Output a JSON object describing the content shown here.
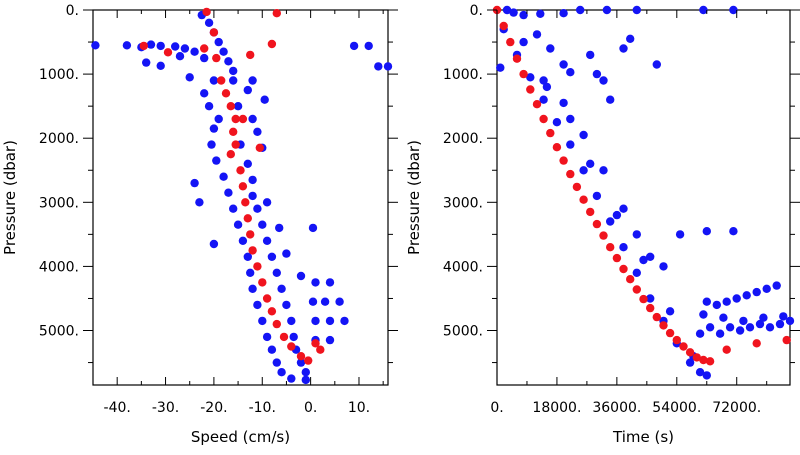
{
  "colors": {
    "blue": "#1414f5",
    "red": "#f0141e",
    "frame": "#000000"
  },
  "chart_data": [
    {
      "type": "scatter",
      "xlabel": "Speed (cm/s)",
      "ylabel": "Pressure (dbar)",
      "xlim": [
        -45,
        16
      ],
      "ylim": [
        5850,
        0
      ],
      "xticks": [
        -40,
        -30,
        -20,
        -10,
        0,
        10
      ],
      "xtick_labels": [
        "-40.",
        "-30.",
        "-20.",
        "-10.",
        "0.",
        "10."
      ],
      "yticks": [
        0,
        1000,
        2000,
        3000,
        4000,
        5000
      ],
      "ytick_labels": [
        "0.",
        "1000.",
        "2000.",
        "3000.",
        "4000.",
        "5000."
      ],
      "series": [
        {
          "color": "blue",
          "points": [
            [
              -44.5,
              550
            ],
            [
              -38,
              550
            ],
            [
              -35,
              580
            ],
            [
              -33,
              540
            ],
            [
              -31,
              560
            ],
            [
              -28,
              570
            ],
            [
              -26,
              600
            ],
            [
              -34,
              820
            ],
            [
              -31,
              870
            ],
            [
              -27,
              720
            ],
            [
              -24,
              650
            ],
            [
              -22,
              750
            ],
            [
              -22.5,
              80
            ],
            [
              -21,
              200
            ],
            [
              -20,
              350
            ],
            [
              -19,
              500
            ],
            [
              -18,
              650
            ],
            [
              -17,
              800
            ],
            [
              -16,
              950
            ],
            [
              -25,
              1050
            ],
            [
              -20,
              1100
            ],
            [
              -16,
              1100
            ],
            [
              -12,
              1100
            ],
            [
              -22,
              1300
            ],
            [
              -13,
              1250
            ],
            [
              -21,
              1500
            ],
            [
              -15,
              1500
            ],
            [
              -9.5,
              1400
            ],
            [
              -19,
              1700
            ],
            [
              -12,
              1700
            ],
            [
              -20,
              1850
            ],
            [
              -11,
              1900
            ],
            [
              -20.5,
              2100
            ],
            [
              -14.5,
              2100
            ],
            [
              -10,
              2150
            ],
            [
              -19.5,
              2350
            ],
            [
              -13,
              2400
            ],
            [
              -18,
              2600
            ],
            [
              -12,
              2650
            ],
            [
              -17,
              2850
            ],
            [
              -12,
              2900
            ],
            [
              -16,
              3100
            ],
            [
              -11,
              3100
            ],
            [
              -9,
              3000
            ],
            [
              -6.5,
              3400
            ],
            [
              -15,
              3350
            ],
            [
              -10,
              3350
            ],
            [
              -14,
              3600
            ],
            [
              -9,
              3600
            ],
            [
              -5,
              3800
            ],
            [
              -13,
              3850
            ],
            [
              -8,
              3850
            ],
            [
              -12.5,
              4100
            ],
            [
              -7,
              4100
            ],
            [
              -2,
              4150
            ],
            [
              -12,
              4350
            ],
            [
              -6,
              4350
            ],
            [
              -11,
              4600
            ],
            [
              -5,
              4600
            ],
            [
              -10,
              4850
            ],
            [
              -4,
              4850
            ],
            [
              -9,
              5100
            ],
            [
              -3.5,
              5100
            ],
            [
              -8,
              5300
            ],
            [
              -3,
              5300
            ],
            [
              -7,
              5500
            ],
            [
              -2,
              5500
            ],
            [
              -6,
              5650
            ],
            [
              -1,
              5650
            ],
            [
              -4,
              5750
            ],
            [
              -1,
              5770
            ],
            [
              1,
              4250
            ],
            [
              4,
              4250
            ],
            [
              0.5,
              4550
            ],
            [
              3,
              4550
            ],
            [
              6,
              4550
            ],
            [
              1,
              4850
            ],
            [
              4,
              4850
            ],
            [
              7,
              4850
            ],
            [
              1,
              5150
            ],
            [
              4,
              5150
            ],
            [
              0.5,
              3400
            ],
            [
              14,
              880
            ],
            [
              16,
              880
            ],
            [
              9,
              560
            ],
            [
              12,
              560
            ],
            [
              -24,
              2700
            ],
            [
              -23,
              3000
            ],
            [
              -20,
              3650
            ]
          ]
        },
        {
          "color": "red",
          "points": [
            [
              -34.5,
              560
            ],
            [
              -29.5,
              660
            ],
            [
              -22,
              600
            ],
            [
              -21.5,
              30
            ],
            [
              -20,
              350
            ],
            [
              -19.5,
              750
            ],
            [
              -18.5,
              1100
            ],
            [
              -17.5,
              1300
            ],
            [
              -16.5,
              1500
            ],
            [
              -15.5,
              1700
            ],
            [
              -16,
              1900
            ],
            [
              -15.5,
              2100
            ],
            [
              -16.5,
              2250
            ],
            [
              -14.5,
              2500
            ],
            [
              -14,
              2750
            ],
            [
              -13.5,
              3000
            ],
            [
              -13,
              3250
            ],
            [
              -12.5,
              3500
            ],
            [
              -12,
              3750
            ],
            [
              -11,
              4000
            ],
            [
              -10,
              4250
            ],
            [
              -9,
              4500
            ],
            [
              -8,
              4700
            ],
            [
              -7,
              4900
            ],
            [
              -5.5,
              5100
            ],
            [
              -4,
              5250
            ],
            [
              -2,
              5400
            ],
            [
              -0.5,
              5470
            ],
            [
              1,
              5200
            ],
            [
              2,
              5300
            ],
            [
              -10.5,
              2150
            ],
            [
              -14,
              1700
            ],
            [
              -12.5,
              700
            ],
            [
              -8,
              530
            ],
            [
              -7,
              50
            ]
          ]
        }
      ]
    },
    {
      "type": "scatter",
      "xlabel": "Time (s)",
      "ylabel": "Pressure (dbar)",
      "xlim": [
        0,
        88000
      ],
      "ylim": [
        5850,
        0
      ],
      "xticks": [
        0,
        18000,
        36000,
        54000,
        72000
      ],
      "xtick_labels": [
        "0.",
        "18000.",
        "36000.",
        "54000.",
        "72000."
      ],
      "yticks": [
        0,
        1000,
        2000,
        3000,
        4000,
        5000
      ],
      "ytick_labels": [
        "0.",
        "1000.",
        "2000.",
        "3000.",
        "4000.",
        "5000."
      ],
      "series": [
        {
          "color": "blue",
          "points": [
            [
              1000,
              900
            ],
            [
              3000,
              0
            ],
            [
              5000,
              40
            ],
            [
              8000,
              80
            ],
            [
              13000,
              60
            ],
            [
              20000,
              50
            ],
            [
              25000,
              0
            ],
            [
              33000,
              0
            ],
            [
              42000,
              0
            ],
            [
              62000,
              0
            ],
            [
              71000,
              0
            ],
            [
              2000,
              300
            ],
            [
              6000,
              700
            ],
            [
              10000,
              1050
            ],
            [
              14000,
              1400
            ],
            [
              18000,
              1750
            ],
            [
              22000,
              2100
            ],
            [
              26000,
              2500
            ],
            [
              30000,
              2900
            ],
            [
              34000,
              3300
            ],
            [
              38000,
              3700
            ],
            [
              42000,
              4100
            ],
            [
              46000,
              4500
            ],
            [
              50000,
              4850
            ],
            [
              54000,
              5200
            ],
            [
              58000,
              5500
            ],
            [
              61000,
              5650
            ],
            [
              63000,
              5700
            ],
            [
              8000,
              500
            ],
            [
              15000,
              1200
            ],
            [
              22000,
              1700
            ],
            [
              28000,
              2400
            ],
            [
              36000,
              3200
            ],
            [
              44000,
              3900
            ],
            [
              52000,
              4700
            ],
            [
              59000,
              5400
            ],
            [
              12000,
              380
            ],
            [
              16000,
              600
            ],
            [
              20000,
              850
            ],
            [
              22000,
              970
            ],
            [
              14000,
              1100
            ],
            [
              20000,
              1450
            ],
            [
              26000,
              1950
            ],
            [
              32000,
              2500
            ],
            [
              38000,
              3100
            ],
            [
              42000,
              3500
            ],
            [
              46000,
              3850
            ],
            [
              50000,
              4000
            ],
            [
              28000,
              700
            ],
            [
              30000,
              1000
            ],
            [
              32000,
              1100
            ],
            [
              34000,
              1400
            ],
            [
              38000,
              600
            ],
            [
              40000,
              450
            ],
            [
              48000,
              850
            ],
            [
              55000,
              3500
            ],
            [
              63000,
              3450
            ],
            [
              71000,
              3450
            ],
            [
              63000,
              4550
            ],
            [
              66000,
              4600
            ],
            [
              69000,
              4550
            ],
            [
              72000,
              4500
            ],
            [
              75000,
              4450
            ],
            [
              78000,
              4400
            ],
            [
              81000,
              4350
            ],
            [
              84000,
              4300
            ],
            [
              61000,
              5050
            ],
            [
              64000,
              4950
            ],
            [
              67000,
              5050
            ],
            [
              70000,
              4950
            ],
            [
              73000,
              5000
            ],
            [
              76000,
              4950
            ],
            [
              79000,
              4900
            ],
            [
              82000,
              4950
            ],
            [
              85000,
              4900
            ],
            [
              88000,
              4850
            ],
            [
              62000,
              4750
            ],
            [
              68000,
              4800
            ],
            [
              74000,
              4850
            ],
            [
              80000,
              4800
            ],
            [
              86000,
              4780
            ]
          ]
        },
        {
          "color": "red",
          "points": [
            [
              0,
              0
            ],
            [
              2000,
              250
            ],
            [
              4000,
              500
            ],
            [
              6000,
              760
            ],
            [
              8000,
              1000
            ],
            [
              10000,
              1240
            ],
            [
              12000,
              1470
            ],
            [
              14000,
              1700
            ],
            [
              16000,
              1920
            ],
            [
              18000,
              2140
            ],
            [
              20000,
              2350
            ],
            [
              22000,
              2560
            ],
            [
              24000,
              2760
            ],
            [
              26000,
              2960
            ],
            [
              28000,
              3150
            ],
            [
              30000,
              3340
            ],
            [
              32000,
              3520
            ],
            [
              34000,
              3700
            ],
            [
              36000,
              3870
            ],
            [
              38000,
              4040
            ],
            [
              40000,
              4200
            ],
            [
              42000,
              4360
            ],
            [
              44000,
              4510
            ],
            [
              46000,
              4650
            ],
            [
              48000,
              4790
            ],
            [
              50000,
              4920
            ],
            [
              52000,
              5040
            ],
            [
              54000,
              5150
            ],
            [
              56000,
              5250
            ],
            [
              58000,
              5340
            ],
            [
              60000,
              5420
            ],
            [
              62000,
              5460
            ],
            [
              64000,
              5480
            ],
            [
              69000,
              5300
            ],
            [
              78000,
              5200
            ],
            [
              87000,
              5150
            ]
          ]
        }
      ]
    }
  ]
}
